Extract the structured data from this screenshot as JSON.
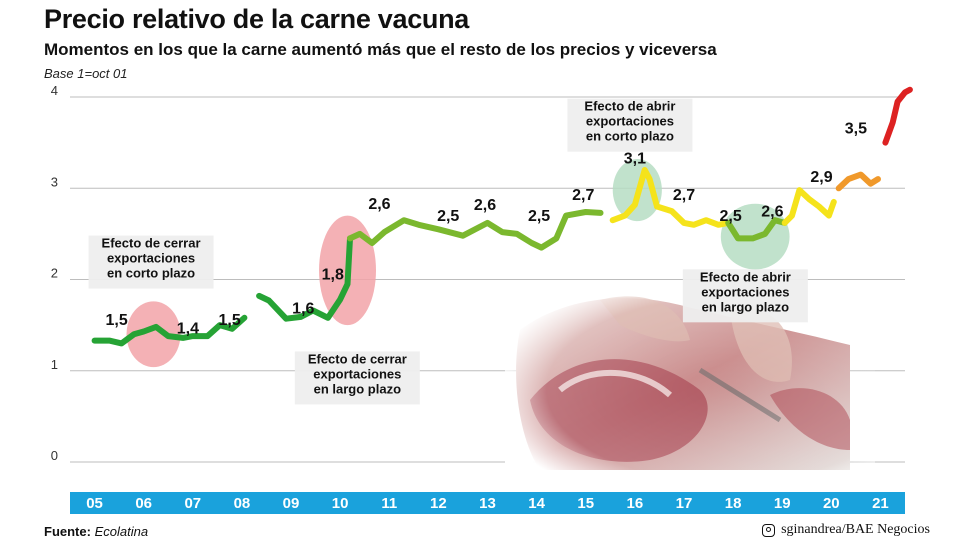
{
  "header": {
    "title": "Precio relativo de la carne vacuna",
    "subtitle": "Momentos en los que la carne aumentó más que el resto de los precios y viceversa",
    "base_note": "Base 1=oct 01"
  },
  "footer": {
    "source_label": "Fuente:",
    "source_value": "Ecolatina",
    "credit": "sginandrea/BAE Negocios",
    "credit_icon": "instagram-icon"
  },
  "chart_data": {
    "type": "line",
    "title": "Precio relativo de la carne vacuna",
    "subtitle": "Momentos en los que la carne aumentó más que el resto de los precios y viceversa",
    "xlabel": "",
    "ylabel": "",
    "ylim": [
      0,
      4
    ],
    "yticks": [
      "0",
      "1",
      "2",
      "3",
      "4"
    ],
    "x_categories": [
      "05",
      "06",
      "07",
      "08",
      "09",
      "10",
      "11",
      "12",
      "13",
      "14",
      "15",
      "16",
      "17",
      "18",
      "19",
      "20",
      "21"
    ],
    "grid": true,
    "colors": {
      "green": "#7bb82e",
      "dark_green": "#26a335",
      "yellow": "#f5e31b",
      "orange": "#f0992b",
      "red": "#dd2222",
      "axis_band": "#1aa2dc",
      "highlight_red": "#f2a3a8",
      "highlight_green": "#b6ddc3"
    },
    "series": [
      {
        "points": [
          [
            2005.0,
            1.33
          ],
          [
            2005.3,
            1.33
          ],
          [
            2005.55,
            1.3
          ],
          [
            2005.8,
            1.4
          ],
          [
            2006.0,
            1.43
          ],
          [
            2006.25,
            1.48
          ],
          [
            2006.5,
            1.38
          ],
          [
            2006.8,
            1.36
          ],
          [
            2007.0,
            1.38
          ],
          [
            2007.3,
            1.38
          ],
          [
            2007.55,
            1.5
          ],
          [
            2007.8,
            1.46
          ],
          [
            2008.05,
            1.58
          ],
          [
            2008.35,
            1.82
          ],
          [
            2008.55,
            1.77
          ],
          [
            2008.9,
            1.57
          ],
          [
            2009.2,
            1.59
          ],
          [
            2009.45,
            1.66
          ],
          [
            2009.75,
            1.58
          ],
          [
            2010.0,
            1.78
          ],
          [
            2010.15,
            1.95
          ],
          [
            2010.2,
            2.45
          ],
          [
            2010.4,
            2.5
          ],
          [
            2010.65,
            2.4
          ],
          [
            2010.9,
            2.52
          ],
          [
            2011.3,
            2.65
          ],
          [
            2011.6,
            2.6
          ],
          [
            2012.0,
            2.55
          ],
          [
            2012.5,
            2.48
          ],
          [
            2013.0,
            2.62
          ],
          [
            2013.3,
            2.52
          ],
          [
            2013.6,
            2.5
          ],
          [
            2013.9,
            2.4
          ],
          [
            2014.1,
            2.35
          ],
          [
            2014.4,
            2.45
          ],
          [
            2014.6,
            2.7
          ],
          [
            2015.0,
            2.74
          ],
          [
            2015.3,
            2.73
          ],
          [
            2015.55,
            2.65
          ],
          [
            2015.8,
            2.7
          ],
          [
            2016.0,
            2.82
          ],
          [
            2016.2,
            3.2
          ],
          [
            2016.3,
            3.1
          ],
          [
            2016.45,
            2.8
          ],
          [
            2016.75,
            2.75
          ],
          [
            2017.0,
            2.62
          ],
          [
            2017.2,
            2.6
          ],
          [
            2017.45,
            2.65
          ],
          [
            2017.7,
            2.6
          ],
          [
            2017.9,
            2.62
          ],
          [
            2018.1,
            2.45
          ],
          [
            2018.4,
            2.45
          ],
          [
            2018.65,
            2.5
          ],
          [
            2018.85,
            2.65
          ],
          [
            2019.05,
            2.62
          ],
          [
            2019.2,
            2.7
          ],
          [
            2019.35,
            2.98
          ],
          [
            2019.55,
            2.88
          ],
          [
            2019.75,
            2.8
          ],
          [
            2019.95,
            2.7
          ],
          [
            2020.05,
            2.85
          ],
          [
            2020.15,
            3.0
          ],
          [
            2020.35,
            3.1
          ],
          [
            2020.6,
            3.15
          ],
          [
            2020.8,
            3.05
          ],
          [
            2020.95,
            3.1
          ],
          [
            2021.1,
            3.5
          ],
          [
            2021.25,
            3.72
          ],
          [
            2021.35,
            3.95
          ],
          [
            2021.5,
            4.05
          ],
          [
            2021.6,
            4.08
          ]
        ],
        "segments": [
          {
            "from": 2005.0,
            "to": 2008.1,
            "color": "dark_green"
          },
          {
            "from": 2008.1,
            "to": 2010.2,
            "color": "dark_green"
          },
          {
            "from": 2010.2,
            "to": 2015.5,
            "color": "green"
          },
          {
            "from": 2015.5,
            "to": 2016.45,
            "color": "yellow"
          },
          {
            "from": 2016.45,
            "to": 2017.9,
            "color": "yellow"
          },
          {
            "from": 2017.9,
            "to": 2019.05,
            "color": "green"
          },
          {
            "from": 2019.05,
            "to": 2020.1,
            "color": "yellow"
          },
          {
            "from": 2020.1,
            "to": 2021.05,
            "color": "orange"
          },
          {
            "from": 2021.05,
            "to": 2021.6,
            "color": "red"
          }
        ]
      }
    ],
    "value_labels": [
      {
        "text": "1,5",
        "x": 2005.45,
        "y": 1.5
      },
      {
        "text": "1,4",
        "x": 2006.9,
        "y": 1.41
      },
      {
        "text": "1,5",
        "x": 2007.75,
        "y": 1.5
      },
      {
        "text": "1,6",
        "x": 2009.25,
        "y": 1.63
      },
      {
        "text": "1,8",
        "x": 2009.85,
        "y": 2.0
      },
      {
        "text": "2,6",
        "x": 2010.8,
        "y": 2.77
      },
      {
        "text": "2,5",
        "x": 2012.2,
        "y": 2.64
      },
      {
        "text": "2,6",
        "x": 2012.95,
        "y": 2.76
      },
      {
        "text": "2,5",
        "x": 2014.05,
        "y": 2.64
      },
      {
        "text": "2,7",
        "x": 2014.95,
        "y": 2.87
      },
      {
        "text": "3,1",
        "x": 2016.0,
        "y": 3.27
      },
      {
        "text": "2,7",
        "x": 2017.0,
        "y": 2.87
      },
      {
        "text": "2,5",
        "x": 2017.95,
        "y": 2.64
      },
      {
        "text": "2,6",
        "x": 2018.8,
        "y": 2.69
      },
      {
        "text": "2,9",
        "x": 2019.8,
        "y": 3.07
      },
      {
        "text": "3,5",
        "x": 2020.5,
        "y": 3.6
      }
    ],
    "annotations": [
      {
        "lines": [
          "Efecto de cerrar",
          "exportaciones",
          "en corto plazo"
        ],
        "x": 2006.15,
        "y": 2.35,
        "highlight": {
          "x": 2006.2,
          "y": 1.4,
          "rx": 0.55,
          "ry": 0.36,
          "color": "highlight_red"
        }
      },
      {
        "lines": [
          "Efecto de cerrar",
          "exportaciones",
          "en largo plazo"
        ],
        "x": 2010.35,
        "y": 1.08,
        "highlight": {
          "x": 2010.15,
          "y": 2.1,
          "rx": 0.58,
          "ry": 0.6,
          "color": "highlight_red"
        }
      },
      {
        "lines": [
          "Efecto de abrir",
          "exportaciones",
          "en corto plazo"
        ],
        "x": 2015.9,
        "y": 3.85,
        "highlight": {
          "x": 2016.05,
          "y": 2.98,
          "rx": 0.5,
          "ry": 0.34,
          "color": "highlight_green"
        }
      },
      {
        "lines": [
          "Efecto de abrir",
          "exportaciones",
          "en largo plazo"
        ],
        "x": 2018.25,
        "y": 1.98,
        "highlight": {
          "x": 2018.45,
          "y": 2.47,
          "rx": 0.7,
          "ry": 0.36,
          "color": "highlight_green"
        }
      }
    ]
  }
}
